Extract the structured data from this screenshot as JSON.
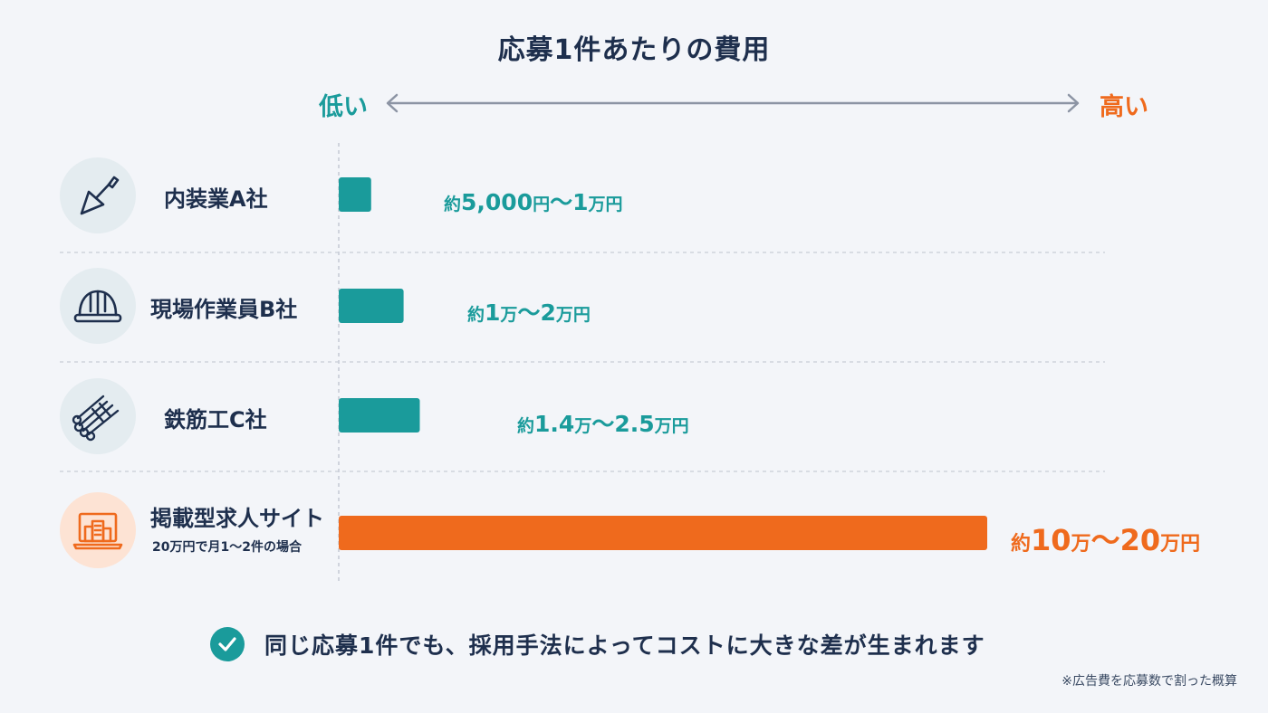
{
  "chart_data": {
    "type": "bar",
    "orientation": "horizontal",
    "title": "応募1件あたりの費用",
    "scale": {
      "low_label": "低い",
      "high_label": "高い"
    },
    "categories": [
      "内装業A社",
      "現場作業員B社",
      "鉄筋工C社",
      "掲載型求人サイト"
    ],
    "category_notes": [
      "",
      "",
      "",
      "20万円で月1〜2件の場合"
    ],
    "series": [
      {
        "values": [
          10000,
          20000,
          25000,
          200000
        ]
      }
    ],
    "value_labels": [
      {
        "prefix": "約",
        "parts": [
          [
            "5,000",
            "big"
          ],
          [
            "円",
            "sm"
          ],
          [
            "〜",
            "big"
          ],
          [
            "1",
            "big"
          ],
          [
            "万円",
            "sm"
          ]
        ]
      },
      {
        "prefix": "約",
        "parts": [
          [
            "1",
            "big"
          ],
          [
            "万",
            "sm"
          ],
          [
            "〜",
            "big"
          ],
          [
            "2",
            "big"
          ],
          [
            "万円",
            "sm"
          ]
        ]
      },
      {
        "prefix": "約",
        "parts": [
          [
            "1.4",
            "big"
          ],
          [
            "万",
            "sm"
          ],
          [
            "〜",
            "big"
          ],
          [
            "2.5",
            "big"
          ],
          [
            "万円",
            "sm"
          ]
        ]
      },
      {
        "prefix": "約",
        "parts": [
          [
            "10",
            "big"
          ],
          [
            "万",
            "sm"
          ],
          [
            "〜",
            "big"
          ],
          [
            "20",
            "big"
          ],
          [
            "万円",
            "sm"
          ]
        ]
      }
    ],
    "bar_colors": [
      "#1a9b9b",
      "#1a9b9b",
      "#1a9b9b",
      "#ef6a1d"
    ],
    "xlim": [
      0,
      200000
    ],
    "grid": false,
    "legend": "none"
  },
  "icons": [
    "trowel-icon",
    "hardhat-icon",
    "rebar-icon",
    "laptop-building-icon"
  ],
  "colors": {
    "teal": "#1a9b9b",
    "orange": "#ef6a1d",
    "navy": "#1e2f4d"
  },
  "conclusion": "同じ応募1件でも、採用手法によってコストに大きな差が生まれます",
  "footnote": "※広告費を応募数で割った概算"
}
